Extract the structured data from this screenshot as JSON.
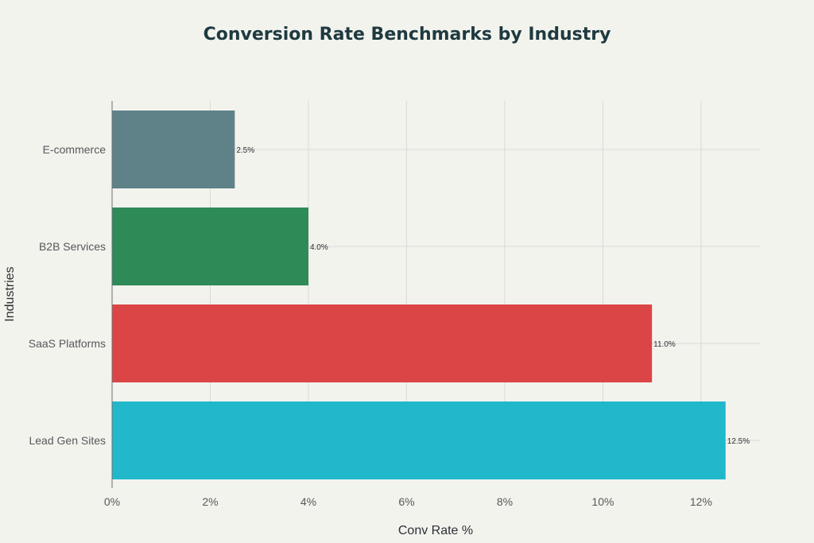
{
  "chart_data": {
    "type": "bar",
    "orientation": "horizontal",
    "title": "Conversion Rate Benchmarks by Industry",
    "xlabel": "Conv Rate %",
    "ylabel": "Industries",
    "categories": [
      "E-commerce",
      "B2B Services",
      "SaaS Platforms",
      "Lead Gen Sites"
    ],
    "values": [
      2.5,
      4.0,
      11.0,
      12.5
    ],
    "data_labels": [
      "2.5%",
      "4.0%",
      "11.0%",
      "12.5%"
    ],
    "colors": [
      "#5f8289",
      "#2e8a57",
      "#db4546",
      "#21b8cc"
    ],
    "xticks": [
      "0%",
      "2%",
      "4%",
      "6%",
      "8%",
      "10%",
      "12%"
    ],
    "xtick_values": [
      0,
      2,
      4,
      6,
      8,
      10,
      12
    ],
    "xlim": [
      0,
      13.2
    ],
    "grid": true,
    "legend": "none"
  }
}
